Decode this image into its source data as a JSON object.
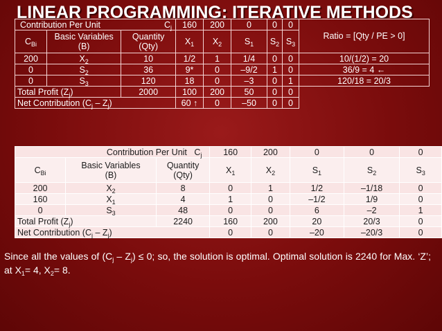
{
  "title": "LINEAR PROGRAMMING: ITERATIVE METHODS",
  "table1": {
    "cj_row": {
      "label": "Contribution Per Unit",
      "cj": "C",
      "cj_sub": "j",
      "values": [
        "160",
        "200",
        "0",
        "0",
        "0"
      ]
    },
    "ratio_header": "Ratio = [Qty / PE > 0]",
    "header": {
      "cb": "C",
      "cb_sub": "Bi",
      "basic_line1": "Basic Variables",
      "basic_line2": "(B)",
      "qty_line1": "Quantity",
      "qty_line2": "(Qty)",
      "vars": [
        {
          "v": "X",
          "s": "1"
        },
        {
          "v": "X",
          "s": "2"
        },
        {
          "v": "S",
          "s": "1"
        },
        {
          "v": "S",
          "s": "2"
        },
        {
          "v": "S",
          "s": "3"
        }
      ]
    },
    "rows": [
      {
        "cb": "200",
        "bv": "X",
        "bs": "2",
        "qty": "10",
        "vals": [
          "1/2",
          "1",
          "1/4",
          "0",
          "0"
        ],
        "ratio": "10/(1/2) = 20"
      },
      {
        "cb": "0",
        "bv": "S",
        "bs": "2",
        "qty": "36",
        "vals": [
          "9*",
          "0",
          "–9/2",
          "1",
          "0"
        ],
        "ratio": "36/9 = 4 ←"
      },
      {
        "cb": "0",
        "bv": "S",
        "bs": "3",
        "qty": "120",
        "vals": [
          "18",
          "0",
          "–3",
          "0",
          "1"
        ],
        "ratio": "120/18 = 20/3"
      }
    ],
    "total_profit": {
      "label_a": "Total Profit  (Z",
      "label_s": "j",
      "label_b": ")",
      "qty": "2000",
      "vals": [
        "100",
        "200",
        "50",
        "0",
        "0"
      ]
    },
    "net_contribution": {
      "label_a": "Net Contribution  (C",
      "label_s1": "j",
      "label_m": " – Z",
      "label_s2": "j",
      "label_b": ")",
      "vals": [
        "60 ↑",
        "0",
        "–50",
        "0",
        "0"
      ]
    }
  },
  "table2": {
    "cj_row": {
      "label": "Contribution Per Unit",
      "cj": "C",
      "cj_sub": "j",
      "values": [
        "160",
        "200",
        "0",
        "0",
        "0"
      ]
    },
    "header": {
      "cb": "C",
      "cb_sub": "Bi",
      "basic_line1": "Basic Variables",
      "basic_line2": "(B)",
      "qty_line1": "Quantity",
      "qty_line2": "(Qty)",
      "vars": [
        {
          "v": "X",
          "s": "1"
        },
        {
          "v": "X",
          "s": "2"
        },
        {
          "v": "S",
          "s": "1"
        },
        {
          "v": "S",
          "s": "2"
        },
        {
          "v": "S",
          "s": "3"
        }
      ]
    },
    "rows": [
      {
        "cb": "200",
        "bv": "X",
        "bs": "2",
        "qty": "8",
        "vals": [
          "0",
          "1",
          "1/2",
          "–1/18",
          "0"
        ]
      },
      {
        "cb": "160",
        "bv": "X",
        "bs": "1",
        "qty": "4",
        "vals": [
          "1",
          "0",
          "–1/2",
          "1/9",
          "0"
        ]
      },
      {
        "cb": "0",
        "bv": "S",
        "bs": "3",
        "qty": "48",
        "vals": [
          "0",
          "0",
          "6",
          "–2",
          "1"
        ]
      }
    ],
    "total_profit": {
      "label_a": "Total Profit  (Z",
      "label_s": "j",
      "label_b": ")",
      "qty": "2240",
      "vals": [
        "160",
        "200",
        "20",
        "20/3",
        "0"
      ]
    },
    "net_contribution": {
      "label_a": "Net Contribution  (C",
      "label_s1": "j",
      "label_m": " – Z",
      "label_s2": "j",
      "label_b": ")",
      "vals": [
        "0",
        "0",
        "–20",
        "–20/3",
        "0"
      ]
    }
  },
  "conclusion": {
    "p1": "Since all the values of (C",
    "s1": "j",
    "p2": " – Z",
    "s2": "j",
    "p3": ") ≤ 0; so, the solution is optimal. Optimal solution is 2240 for Max. ‘Z’;  at X",
    "s3": "1",
    "p4": "= 4, X",
    "s4": "2",
    "p5": "= 8."
  }
}
